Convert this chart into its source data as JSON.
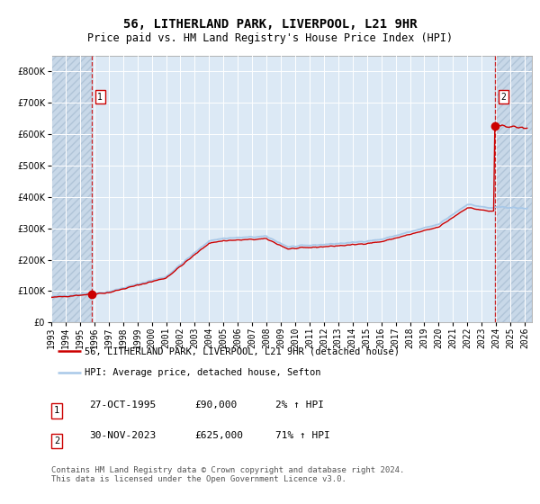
{
  "title": "56, LITHERLAND PARK, LIVERPOOL, L21 9HR",
  "subtitle": "Price paid vs. HM Land Registry's House Price Index (HPI)",
  "ylim": [
    0,
    850000
  ],
  "yticks": [
    0,
    100000,
    200000,
    300000,
    400000,
    500000,
    600000,
    700000,
    800000
  ],
  "xlim_start": 1993.0,
  "xlim_end": 2026.5,
  "hpi_color": "#a8c8e8",
  "price_color": "#cc0000",
  "bg_color": "#dce9f5",
  "hatch_bg": "#c8d8e8",
  "sale1_year": 1995.82,
  "sale1_price": 90000,
  "sale2_year": 2023.92,
  "sale2_price": 625000,
  "legend_label1": "56, LITHERLAND PARK, LIVERPOOL, L21 9HR (detached house)",
  "legend_label2": "HPI: Average price, detached house, Sefton",
  "note1_date": "27-OCT-1995",
  "note1_price": "£90,000",
  "note1_hpi": "2% ↑ HPI",
  "note2_date": "30-NOV-2023",
  "note2_price": "£625,000",
  "note2_hpi": "71% ↑ HPI",
  "footer": "Contains HM Land Registry data © Crown copyright and database right 2024.\nThis data is licensed under the Open Government Licence v3.0.",
  "title_fontsize": 10,
  "subtitle_fontsize": 8.5,
  "tick_fontsize": 7,
  "legend_fontsize": 7.5,
  "note_fontsize": 8,
  "footer_fontsize": 6.5
}
